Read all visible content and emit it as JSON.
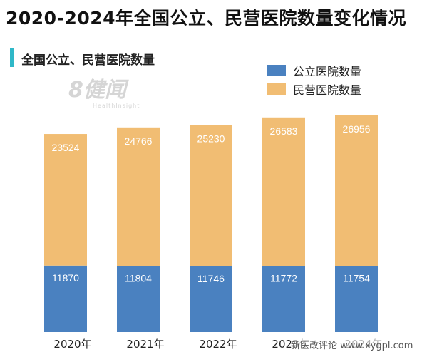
{
  "title": "2020-2024年全国公立、民营医院数量变化情况",
  "subtitle": "全国公立、民营医院数量",
  "logo": {
    "text": "8健闻",
    "sub": "HealthInsight"
  },
  "watermark": "新医改评论 www.xygpl.com",
  "colors": {
    "public": "#4a81c0",
    "private": "#f1bd73",
    "accent": "#2fb8c8"
  },
  "chart_data": {
    "type": "bar",
    "stacked": true,
    "categories": [
      "2020年",
      "2021年",
      "2022年",
      "2023年",
      "2024年"
    ],
    "series": [
      {
        "name": "公立医院数量",
        "values": [
          11870,
          11804,
          11746,
          11772,
          11754
        ]
      },
      {
        "name": "民营医院数量",
        "values": [
          23524,
          24766,
          25230,
          26583,
          26956
        ]
      }
    ],
    "legend_position": "top-right",
    "grid": false
  }
}
